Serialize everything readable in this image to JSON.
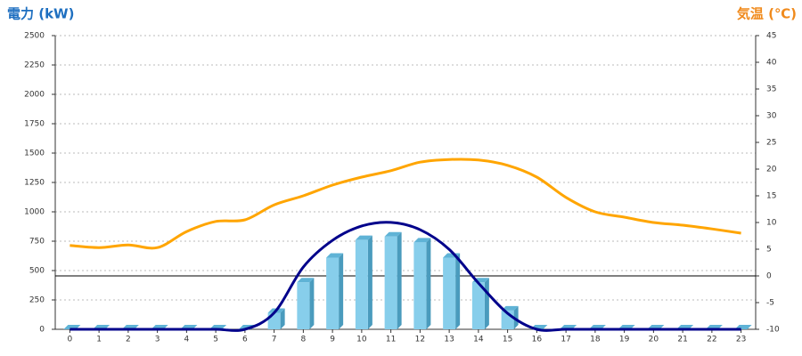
{
  "chart_data": {
    "type": "bar",
    "y_title": "電力 (kW)",
    "y2_title": "気温 (℃)",
    "categories": [
      "0",
      "1",
      "2",
      "3",
      "4",
      "5",
      "6",
      "7",
      "8",
      "9",
      "10",
      "11",
      "12",
      "13",
      "14",
      "15",
      "16",
      "17",
      "18",
      "19",
      "20",
      "21",
      "22",
      "23"
    ],
    "series": [
      {
        "type": "bar",
        "color": "#87ceeb",
        "values": [
          0,
          0,
          0,
          0,
          0,
          0,
          0,
          140,
          400,
          610,
          760,
          790,
          740,
          610,
          400,
          160,
          0,
          0,
          0,
          0,
          0,
          0,
          0,
          0
        ]
      },
      {
        "type": "line",
        "color": "#00008b",
        "values": [
          0,
          0,
          0,
          0,
          0,
          0,
          0,
          140,
          530,
          757,
          879,
          910,
          848,
          680,
          394,
          136,
          0,
          0,
          0,
          0,
          0,
          0,
          0,
          0
        ]
      },
      {
        "type": "line",
        "color": "#ffa500",
        "axis": "y2",
        "values": [
          5.7,
          5.3,
          5.8,
          5.3,
          8.3,
          10.2,
          10.5,
          13.3,
          15,
          17,
          18.5,
          19.7,
          21.3,
          21.8,
          21.7,
          20.7,
          18.5,
          14.7,
          12,
          11,
          10,
          9.5,
          8.8,
          8
        ]
      }
    ],
    "ylim": [
      0,
      2500
    ],
    "yticks": [
      0,
      250,
      500,
      750,
      1000,
      1250,
      1500,
      1750,
      2000,
      2250,
      2500
    ],
    "y2lim": [
      -10,
      45
    ],
    "y2ticks": [
      -10,
      -5,
      0,
      5,
      10,
      15,
      20,
      25,
      30,
      35,
      40,
      45
    ],
    "grid": true
  }
}
